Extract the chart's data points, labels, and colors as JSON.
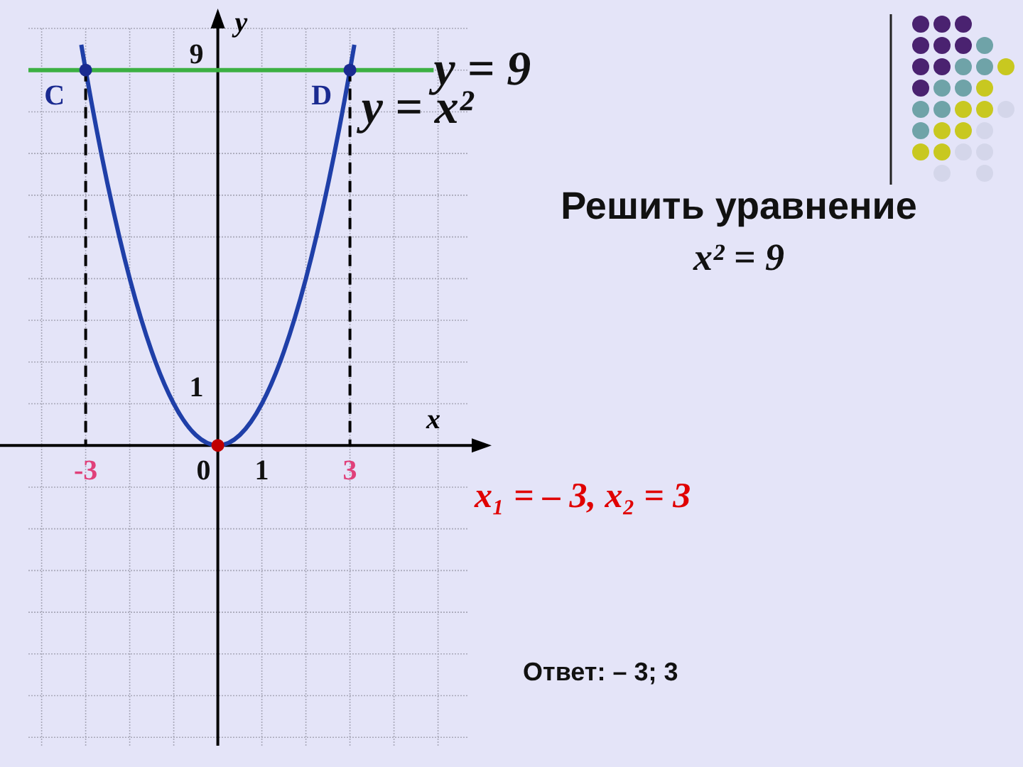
{
  "chart_data": {
    "type": "line",
    "xlabel": "x",
    "ylabel": "y",
    "xlim": [
      -4.3,
      5.7
    ],
    "ylim": [
      -7.2,
      10
    ],
    "xticks": [
      -3,
      0,
      1,
      3
    ],
    "yticks": [
      1,
      9
    ],
    "grid": true,
    "series": [
      {
        "color": "#1f3fa8",
        "marker": "none",
        "line_style": "solid",
        "x": [
          -3.1,
          -3,
          -2.5,
          -2,
          -1.5,
          -1,
          -0.5,
          0,
          0.5,
          1,
          1.5,
          2,
          2.5,
          3,
          3.1
        ],
        "values": [
          9.61,
          9,
          6.25,
          4,
          2.25,
          1,
          0.25,
          0,
          0.25,
          1,
          2.25,
          4,
          6.25,
          9,
          9.61
        ]
      },
      {
        "color": "#3cb043",
        "marker": "none",
        "line_style": "solid",
        "x": [
          -4.3,
          4.9
        ],
        "values": [
          9,
          9
        ]
      },
      {
        "type": "line",
        "color": "#000000",
        "marker": "none",
        "line_style": "dashed",
        "x": [
          -3,
          -3
        ],
        "values": [
          9,
          0
        ]
      },
      {
        "type": "line",
        "color": "#000000",
        "marker": "none",
        "line_style": "dashed",
        "x": [
          3,
          3
        ],
        "values": [
          9,
          0
        ]
      },
      {
        "type": "scatter",
        "color": "#1a2a90",
        "marker": "circle",
        "x": [
          -3,
          3
        ],
        "values": [
          9,
          9
        ]
      },
      {
        "type": "scatter",
        "color": "#c00000",
        "marker": "circle",
        "x": [
          0
        ],
        "values": [
          0
        ]
      }
    ],
    "annotations": [
      {
        "text": "C",
        "x": -3,
        "y": 9
      },
      {
        "text": "D",
        "x": 3,
        "y": 9
      },
      {
        "text": "y = 9",
        "x": 4.9,
        "y": 9
      },
      {
        "text": "y = x²",
        "x": 3.1,
        "y": 9.61
      },
      "Решить уравнение",
      "x² = 9",
      "x₁ = – 3, x₂ = 3",
      "Ответ: – 3; 3"
    ]
  }
}
